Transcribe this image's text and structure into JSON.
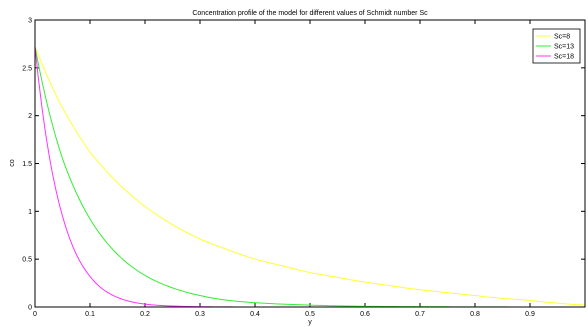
{
  "chart_data": {
    "type": "line",
    "title": "Concentration profile of the model for different values of Schmidt number Sc",
    "xlabel": "y",
    "ylabel": "co",
    "xlim": [
      0,
      1
    ],
    "ylim": [
      0,
      3
    ],
    "x_ticks": [
      0,
      0.1,
      0.2,
      0.3,
      0.4,
      0.5,
      0.6,
      0.7,
      0.8,
      0.9
    ],
    "x_tick_labels": [
      "0",
      "0.1",
      "0.2",
      "0.3",
      "0.4",
      "0.5",
      "0.6",
      "0.7",
      "0.8",
      "0.9"
    ],
    "y_ticks": [
      0,
      0.5,
      1,
      1.5,
      2,
      2.5,
      3
    ],
    "y_tick_labels": [
      "0",
      "0.5",
      "1",
      "1.5",
      "2",
      "2.5",
      "3"
    ],
    "grid": false,
    "legend_position": "top-right",
    "x": [
      0,
      0.05,
      0.1,
      0.15,
      0.2,
      0.25,
      0.3,
      0.35,
      0.4,
      0.45,
      0.5,
      0.55,
      0.6,
      0.65,
      0.7,
      0.75,
      0.8,
      0.85,
      0.9,
      0.95,
      1.0
    ],
    "series": [
      {
        "name": "Sc=8",
        "color": "#ffff33",
        "values": [
          2.72,
          2.08,
          1.62,
          1.3,
          1.05,
          0.86,
          0.71,
          0.6,
          0.5,
          0.43,
          0.36,
          0.31,
          0.26,
          0.22,
          0.18,
          0.15,
          0.12,
          0.09,
          0.07,
          0.04,
          0.02
        ]
      },
      {
        "name": "Sc=13",
        "color": "#33ee33",
        "values": [
          2.72,
          1.55,
          0.92,
          0.55,
          0.33,
          0.2,
          0.12,
          0.07,
          0.045,
          0.03,
          0.02,
          0.012,
          0.007,
          0.005,
          0.003,
          0.002,
          0.001,
          0.001,
          0.0,
          0.0,
          0.0
        ]
      },
      {
        "name": "Sc=18",
        "color": "#ff33ff",
        "values": [
          2.72,
          0.95,
          0.32,
          0.1,
          0.03,
          0.01,
          0.003,
          0.001,
          0.0,
          0.0,
          0.0,
          0.0,
          0.0,
          0.0,
          0.0,
          0.0,
          0.0,
          0.0,
          0.0,
          0.0,
          0.0
        ]
      }
    ]
  }
}
